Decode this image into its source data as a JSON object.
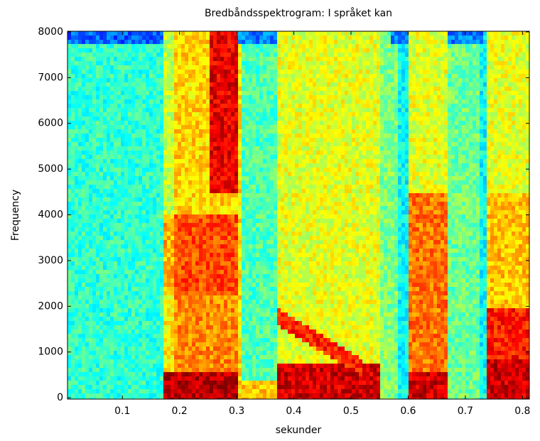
{
  "chart_data": {
    "type": "spectrogram",
    "title": "Bredbåndsspektrogram: I språket kan",
    "xlabel": "sekunder",
    "ylabel": "Frequency",
    "xlim": [
      0.004,
      0.812
    ],
    "xticks": [
      0.1,
      0.2,
      0.3,
      0.4,
      0.5,
      0.6,
      0.7,
      0.8
    ],
    "ylim": [
      -30,
      8015
    ],
    "yticks": [
      0,
      1000,
      2000,
      3000,
      4000,
      5000,
      6000,
      7000,
      8000
    ],
    "colormap": "jet"
  }
}
